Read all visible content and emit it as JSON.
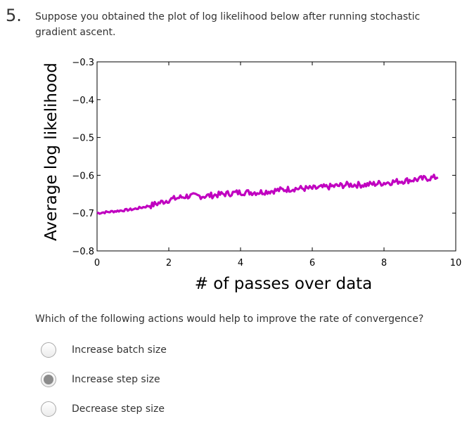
{
  "question": {
    "number": "5.",
    "text": "Suppose you obtained the plot of log likelihood below after running stochastic gradient ascent.",
    "prompt": "Which of the following actions would help to improve the rate of convergence?"
  },
  "options": [
    {
      "label": "Increase batch size",
      "selected": false
    },
    {
      "label": "Increase step size",
      "selected": true
    },
    {
      "label": "Decrease step size",
      "selected": false
    }
  ],
  "chart_data": {
    "type": "line",
    "title": "",
    "xlabel": "# of passes over data",
    "ylabel": "Average log likelihood",
    "xlim": [
      0,
      10
    ],
    "ylim": [
      -0.8,
      -0.3
    ],
    "xticks": [
      "0",
      "2",
      "4",
      "6",
      "8",
      "10"
    ],
    "yticks": [
      "−0.3",
      "−0.4",
      "−0.5",
      "−0.6",
      "−0.7",
      "−0.8"
    ],
    "grid": false,
    "series": [
      {
        "color": "#c000c0",
        "x": [
          0,
          0.5,
          1,
          1.5,
          2,
          2.5,
          3,
          3.5,
          4,
          4.5,
          5,
          5.5,
          6,
          6.5,
          7,
          7.5,
          8,
          8.5,
          9,
          9.5
        ],
        "y": [
          -0.7,
          -0.695,
          -0.69,
          -0.68,
          -0.665,
          -0.655,
          -0.655,
          -0.65,
          -0.645,
          -0.645,
          -0.64,
          -0.635,
          -0.635,
          -0.63,
          -0.625,
          -0.625,
          -0.62,
          -0.615,
          -0.61,
          -0.605
        ]
      }
    ]
  }
}
